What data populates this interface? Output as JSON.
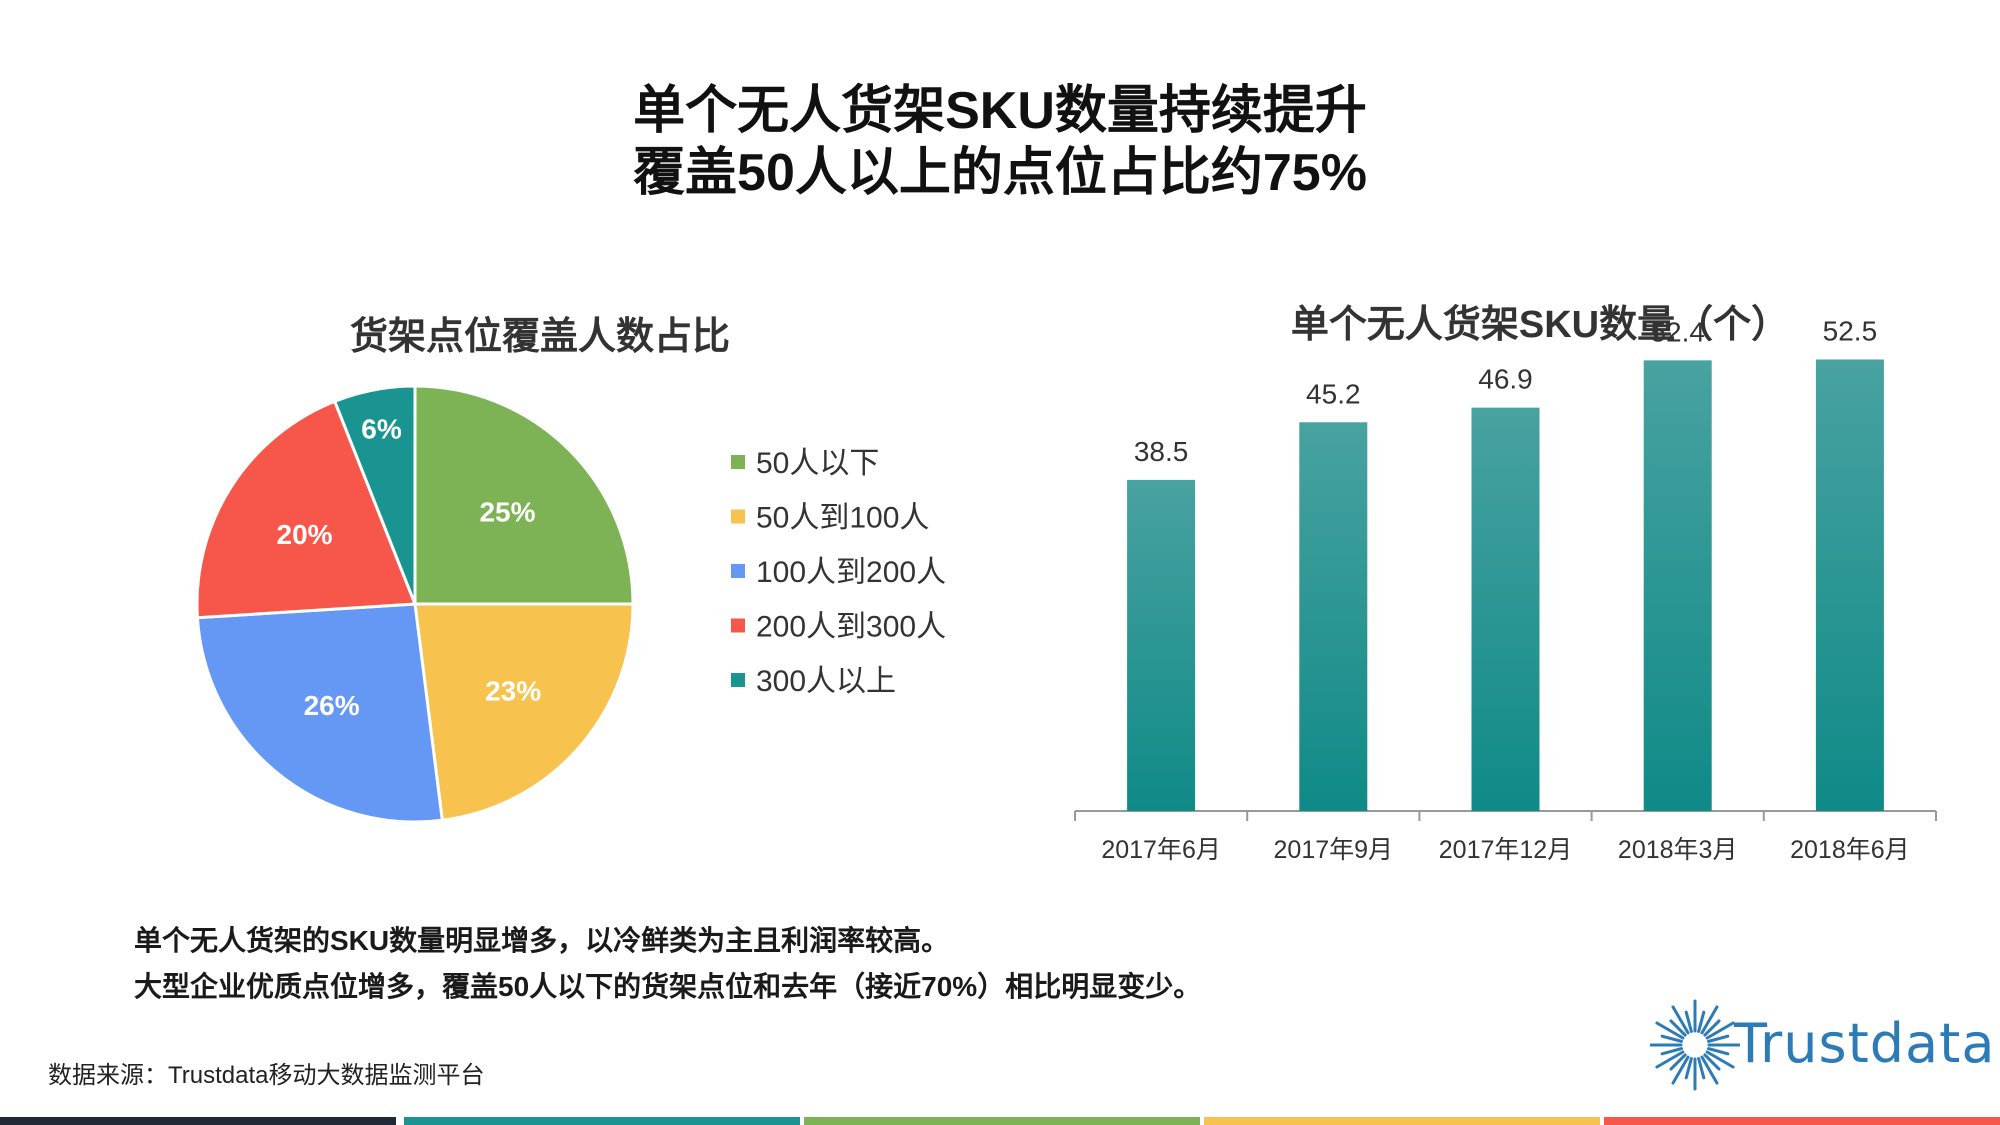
{
  "main_title": {
    "line1": "单个无人货架SKU数量持续提升",
    "line2": "覆盖50人以上的点位占比约75%"
  },
  "pie_chart": {
    "title": "货架点位覆盖人数占比"
  },
  "bar_chart": {
    "title": "单个无人货架SKU数量（个）"
  },
  "chart_data": [
    {
      "type": "pie",
      "title": "货架点位覆盖人数占比",
      "labels": [
        "50人以下",
        "50人到100人",
        "100人到200人",
        "200人到300人",
        "300人以上"
      ],
      "values": [
        25,
        23,
        26,
        20,
        6
      ],
      "value_labels": [
        "25%",
        "23%",
        "26%",
        "20%",
        "6%"
      ],
      "colors": [
        "#7db354",
        "#f8c24f",
        "#6598f5",
        "#f7574a",
        "#1a9490"
      ],
      "legend_position": "right"
    },
    {
      "type": "bar",
      "title": "单个无人货架SKU数量（个）",
      "categories": [
        "2017年6月",
        "2017年9月",
        "2017年12月",
        "2018年3月",
        "2018年6月"
      ],
      "values": [
        38.5,
        45.2,
        46.9,
        52.4,
        52.5
      ],
      "value_labels": [
        "38.5",
        "45.2",
        "46.9",
        "52.4",
        "52.5"
      ],
      "ylim": [
        0,
        60
      ],
      "grid": false,
      "colors": {
        "top": "#48a2a0",
        "bottom": "#0f8a87"
      }
    }
  ],
  "notes": {
    "line1": "单个无人货架的SKU数量明显增多，以冷鲜类为主且利润率较高。",
    "line2": "大型企业优质点位增多，覆盖50人以下的货架点位和去年（接近70%）相比明显变少。"
  },
  "source": "数据来源：Trustdata移动大数据监测平台",
  "logo": {
    "text": "Trustdata",
    "color": "#2c7bb6"
  },
  "footer_colors": [
    "#1f2a36",
    "#1a9490",
    "#7db354",
    "#f8c24f",
    "#f7574a"
  ]
}
